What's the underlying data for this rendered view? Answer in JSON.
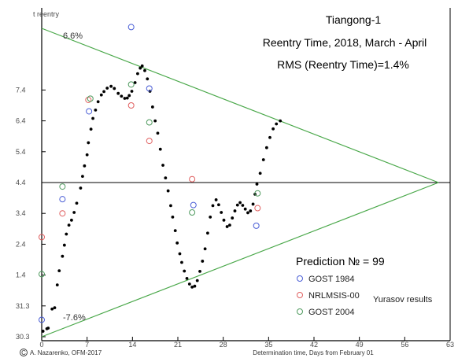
{
  "chart_data": {
    "type": "scatter",
    "title": "Tiangong-1",
    "subtitle": "Reentry Time, 2018, March - April",
    "rms_label": "RMS (Reentry Time)=1.4%",
    "prediction_label": "Prediction № = 99",
    "legend_note": "Yurasov results",
    "xlabel": "Determination time, Days from February 01",
    "footer_left": "A. Nazarenko, OFM-2017",
    "copyright_symbol": "C",
    "envelope_top_label": "6.6%",
    "envelope_bottom_label": "-7.6%",
    "reference_label": "t reentry",
    "legend_position": "bottom-right",
    "grid": false,
    "xlim": [
      0,
      63
    ],
    "ylim": [
      0,
      10.2
    ],
    "x_ticks": [
      {
        "v": 0,
        "label": "0"
      },
      {
        "v": 7,
        "label": "7"
      },
      {
        "v": 14,
        "label": "14"
      },
      {
        "v": 21,
        "label": "21"
      },
      {
        "v": 28,
        "label": "28"
      },
      {
        "v": 35,
        "label": "35"
      },
      {
        "v": 42,
        "label": "42"
      },
      {
        "v": 49,
        "label": "49"
      },
      {
        "v": 56,
        "label": "56"
      },
      {
        "v": 63,
        "label": "63"
      }
    ],
    "y_ticks": [
      {
        "v": 0,
        "label": "30.3"
      },
      {
        "v": 1,
        "label": "31.3"
      },
      {
        "v": 2,
        "label": "1.4"
      },
      {
        "v": 3,
        "label": "2.4"
      },
      {
        "v": 4,
        "label": "3.4"
      },
      {
        "v": 5,
        "label": "4.4"
      },
      {
        "v": 6,
        "label": "5.4"
      },
      {
        "v": 7,
        "label": "6.4"
      },
      {
        "v": 8,
        "label": "7.4"
      }
    ],
    "reference_line": {
      "y": 5.0
    },
    "envelope": {
      "apex": {
        "x": 61.2,
        "y": 5.0
      },
      "upper_start": {
        "x": 0,
        "y": 10.0
      },
      "lower_start": {
        "x": 0,
        "y": 0.0
      }
    },
    "series": [
      {
        "name": "",
        "marker": "dot",
        "color": "#000000",
        "points": [
          [
            0.2,
            0.18
          ],
          [
            0.8,
            0.26
          ],
          [
            1.0,
            0.28
          ],
          [
            1.6,
            0.9
          ],
          [
            2.0,
            0.94
          ],
          [
            2.4,
            1.68
          ],
          [
            2.7,
            2.14
          ],
          [
            3.2,
            2.61
          ],
          [
            3.5,
            2.97
          ],
          [
            3.8,
            3.33
          ],
          [
            4.2,
            3.62
          ],
          [
            4.6,
            3.78
          ],
          [
            5.0,
            4.03
          ],
          [
            5.4,
            4.33
          ],
          [
            6.0,
            4.82
          ],
          [
            6.3,
            5.2
          ],
          [
            6.6,
            5.54
          ],
          [
            7.0,
            5.9
          ],
          [
            7.2,
            6.29
          ],
          [
            7.6,
            6.73
          ],
          [
            7.9,
            7.08
          ],
          [
            8.3,
            7.35
          ],
          [
            8.7,
            7.62
          ],
          [
            9.2,
            7.84
          ],
          [
            9.6,
            7.95
          ],
          [
            10.1,
            8.06
          ],
          [
            10.7,
            8.12
          ],
          [
            11.2,
            8.05
          ],
          [
            11.8,
            7.89
          ],
          [
            12.3,
            7.8
          ],
          [
            12.8,
            7.73
          ],
          [
            13.2,
            7.74
          ],
          [
            13.5,
            7.82
          ],
          [
            13.9,
            7.96
          ],
          [
            14.4,
            8.24
          ],
          [
            14.8,
            8.53
          ],
          [
            15.2,
            8.71
          ],
          [
            15.5,
            8.78
          ],
          [
            15.9,
            8.63
          ],
          [
            16.3,
            8.36
          ],
          [
            16.7,
            7.96
          ],
          [
            17.1,
            7.45
          ],
          [
            17.5,
            7.0
          ],
          [
            17.9,
            6.6
          ],
          [
            18.3,
            6.08
          ],
          [
            18.7,
            5.56
          ],
          [
            19.1,
            5.15
          ],
          [
            19.5,
            4.73
          ],
          [
            19.9,
            4.25
          ],
          [
            20.2,
            3.88
          ],
          [
            20.6,
            3.44
          ],
          [
            20.9,
            3.04
          ],
          [
            21.3,
            2.69
          ],
          [
            21.6,
            2.41
          ],
          [
            22.0,
            2.13
          ],
          [
            22.4,
            1.89
          ],
          [
            22.8,
            1.71
          ],
          [
            23.2,
            1.61
          ],
          [
            23.6,
            1.64
          ],
          [
            24.0,
            1.82
          ],
          [
            24.4,
            2.12
          ],
          [
            24.8,
            2.45
          ],
          [
            25.2,
            2.85
          ],
          [
            25.6,
            3.36
          ],
          [
            26.0,
            3.88
          ],
          [
            26.4,
            4.25
          ],
          [
            26.9,
            4.44
          ],
          [
            27.3,
            4.28
          ],
          [
            27.7,
            4.03
          ],
          [
            28.1,
            3.78
          ],
          [
            28.6,
            3.57
          ],
          [
            29.0,
            3.62
          ],
          [
            29.4,
            3.85
          ],
          [
            29.8,
            4.08
          ],
          [
            30.2,
            4.27
          ],
          [
            30.6,
            4.35
          ],
          [
            31.0,
            4.26
          ],
          [
            31.4,
            4.14
          ],
          [
            31.8,
            4.02
          ],
          [
            32.2,
            4.08
          ],
          [
            32.6,
            4.3
          ],
          [
            32.9,
            4.62
          ],
          [
            33.2,
            4.95
          ],
          [
            33.7,
            5.3
          ],
          [
            34.2,
            5.74
          ],
          [
            34.7,
            6.13
          ],
          [
            35.2,
            6.46
          ],
          [
            35.7,
            6.74
          ],
          [
            36.2,
            6.9
          ],
          [
            36.8,
            7.0
          ]
        ]
      },
      {
        "name": "GOST 1984",
        "marker": "circle",
        "color": "#4b5fd6",
        "points": [
          [
            0,
            0.55
          ],
          [
            3.2,
            4.46
          ],
          [
            7.3,
            7.31
          ],
          [
            13.8,
            10.04
          ],
          [
            16.6,
            8.05
          ],
          [
            23.4,
            4.27
          ],
          [
            33.1,
            3.6
          ]
        ]
      },
      {
        "name": "NRLMSIS-00",
        "marker": "circle",
        "color": "#e06060",
        "points": [
          [
            0,
            3.23
          ],
          [
            3.2,
            4.0
          ],
          [
            7.2,
            7.68
          ],
          [
            13.8,
            7.5
          ],
          [
            16.6,
            6.35
          ],
          [
            23.2,
            5.11
          ],
          [
            33.3,
            4.17
          ]
        ]
      },
      {
        "name": "GOST 2004",
        "marker": "circle",
        "color": "#4f9a5e",
        "points": [
          [
            0,
            2.03
          ],
          [
            3.2,
            4.87
          ],
          [
            7.5,
            7.72
          ],
          [
            13.8,
            8.18
          ],
          [
            16.6,
            6.95
          ],
          [
            23.2,
            4.03
          ],
          [
            33.3,
            4.65
          ]
        ]
      }
    ]
  },
  "colors": {
    "axis": "#000000",
    "tick_label": "#4b4b4b",
    "envelope": "#4aa84a",
    "reference": "#000000"
  }
}
